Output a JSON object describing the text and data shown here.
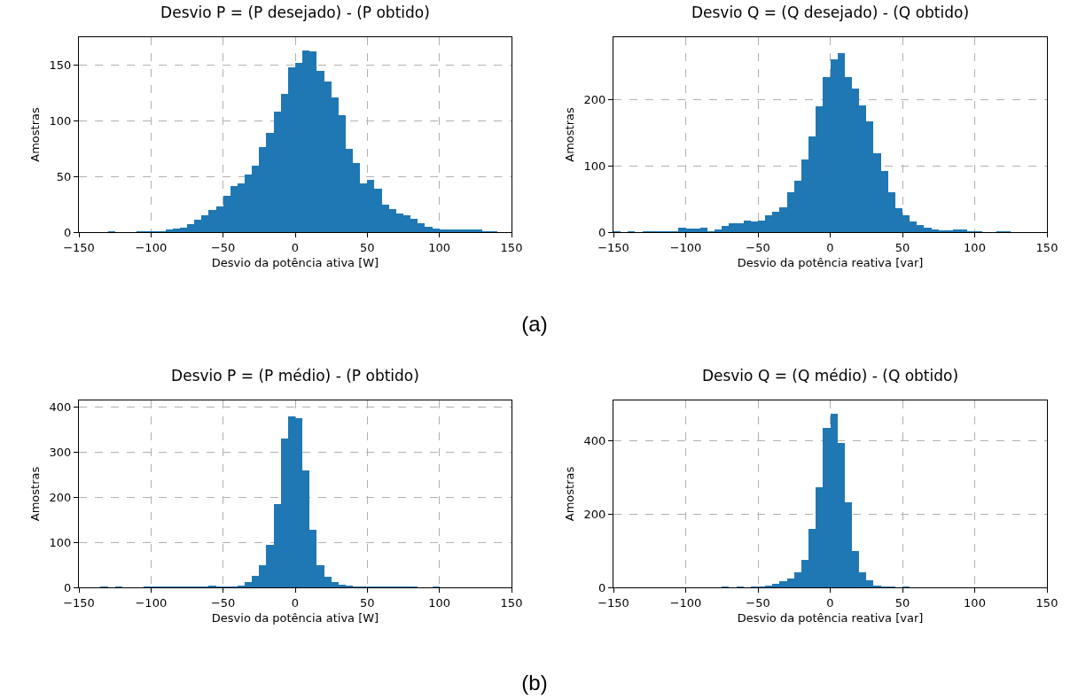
{
  "chart_data": [
    {
      "type": "histogram",
      "title": "Desvio P = (P desejado) - (P obtido)",
      "xlabel": "Desvio da potência ativa [W]",
      "ylabel": "Amostras",
      "color": "#1f77b4",
      "grid": true,
      "annotations": [
        "(a)"
      ],
      "bins": [
        -150,
        -145,
        -140,
        -135,
        -130,
        -125,
        -120,
        -115,
        -110,
        -105,
        -100,
        -95,
        -90,
        -85,
        -80,
        -75,
        -70,
        -65,
        -60,
        -55,
        -50,
        -45,
        -40,
        -35,
        -30,
        -25,
        -20,
        -15,
        -10,
        -5,
        0,
        5,
        10,
        15,
        20,
        25,
        30,
        35,
        40,
        45,
        50,
        55,
        60,
        65,
        70,
        75,
        80,
        85,
        90,
        95,
        100,
        105,
        110,
        115,
        120,
        125,
        130,
        135,
        140,
        145,
        150
      ],
      "values": [
        0,
        0,
        0,
        0,
        1,
        0,
        0,
        0,
        1,
        1,
        1,
        1,
        2,
        3,
        4,
        7,
        11,
        15,
        20,
        23,
        33,
        41,
        44,
        52,
        60,
        76,
        89,
        108,
        124,
        148,
        152,
        163,
        162,
        145,
        135,
        121,
        105,
        75,
        62,
        44,
        47,
        39,
        25,
        21,
        17,
        15,
        12,
        8,
        5,
        3,
        2,
        2,
        2,
        2,
        2,
        2,
        1,
        1,
        0,
        0
      ],
      "xlim": [
        -150,
        150
      ],
      "xticks": [
        {
          "value": -150,
          "label": "−150"
        },
        {
          "value": -100,
          "label": "−100"
        },
        {
          "value": -50,
          "label": "−50"
        },
        0,
        50,
        100,
        150
      ],
      "ylim": [
        0,
        175
      ],
      "yticks": [
        0,
        50,
        100,
        150
      ]
    },
    {
      "type": "histogram",
      "title": "Desvio Q = (Q desejado) - (Q obtido)",
      "xlabel": "Desvio da potência reativa [var]",
      "ylabel": "Amostras",
      "color": "#1f77b4",
      "grid": true,
      "bins": [
        -150,
        -145,
        -140,
        -135,
        -130,
        -125,
        -120,
        -115,
        -110,
        -105,
        -100,
        -95,
        -90,
        -85,
        -80,
        -75,
        -70,
        -65,
        -60,
        -55,
        -50,
        -45,
        -40,
        -35,
        -30,
        -25,
        -20,
        -15,
        -10,
        -5,
        0,
        5,
        10,
        15,
        20,
        25,
        30,
        35,
        40,
        45,
        50,
        55,
        60,
        65,
        70,
        75,
        80,
        85,
        90,
        95,
        100,
        105,
        110,
        115,
        120,
        125,
        130,
        135,
        140,
        145,
        150
      ],
      "values": [
        1,
        0,
        1,
        0,
        1,
        1,
        1,
        1,
        2,
        7,
        5,
        5,
        7,
        2,
        4,
        9,
        13,
        13,
        17,
        16,
        18,
        25,
        31,
        38,
        60,
        78,
        110,
        145,
        190,
        235,
        262,
        271,
        235,
        217,
        192,
        168,
        119,
        92,
        60,
        36,
        25,
        16,
        11,
        7,
        4,
        3,
        3,
        4,
        4,
        2,
        2,
        0,
        0,
        1,
        1,
        0,
        0,
        0,
        0,
        0
      ],
      "xlim": [
        -150,
        150
      ],
      "xticks": [
        {
          "value": -150,
          "label": "−150"
        },
        {
          "value": -100,
          "label": "−100"
        },
        {
          "value": -50,
          "label": "−50"
        },
        0,
        50,
        100,
        150
      ],
      "ylim": [
        0,
        295
      ],
      "yticks": [
        0,
        100,
        200
      ]
    },
    {
      "type": "histogram",
      "title": "Desvio P = (P médio) - (P obtido)",
      "xlabel": "Desvio da potência ativa [W]",
      "ylabel": "Amostras",
      "color": "#1f77b4",
      "grid": true,
      "annotations": [
        "(b)"
      ],
      "bins": [
        -150,
        -145,
        -140,
        -135,
        -130,
        -125,
        -120,
        -115,
        -110,
        -105,
        -100,
        -95,
        -90,
        -85,
        -80,
        -75,
        -70,
        -65,
        -60,
        -55,
        -50,
        -45,
        -40,
        -35,
        -30,
        -25,
        -20,
        -15,
        -10,
        -5,
        0,
        5,
        10,
        15,
        20,
        25,
        30,
        35,
        40,
        45,
        50,
        55,
        60,
        65,
        70,
        75,
        80,
        85,
        90,
        95,
        100,
        105,
        110,
        115,
        120,
        125,
        130,
        135,
        140,
        145,
        150
      ],
      "values": [
        0,
        0,
        0,
        1,
        0,
        1,
        0,
        0,
        0,
        1,
        1,
        2,
        2,
        1,
        1,
        1,
        1,
        2,
        3,
        2,
        2,
        2,
        3,
        12,
        26,
        50,
        95,
        185,
        330,
        380,
        375,
        260,
        127,
        50,
        23,
        12,
        5,
        3,
        2,
        2,
        2,
        2,
        2,
        1,
        1,
        1,
        1,
        0,
        0,
        1,
        0,
        0,
        0,
        0,
        0,
        0,
        0,
        0,
        0,
        0
      ],
      "xlim": [
        -150,
        150
      ],
      "xticks": [
        {
          "value": -150,
          "label": "−150"
        },
        {
          "value": -100,
          "label": "−100"
        },
        {
          "value": -50,
          "label": "−50"
        },
        0,
        50,
        100,
        150
      ],
      "ylim": [
        0,
        415
      ],
      "yticks": [
        0,
        100,
        200,
        300,
        400
      ]
    },
    {
      "type": "histogram",
      "title": "Desvio Q = (Q médio) - (Q obtido)",
      "xlabel": "Desvio da potência reativa [var]",
      "ylabel": "Amostras",
      "color": "#1f77b4",
      "grid": true,
      "bins": [
        -150,
        -145,
        -140,
        -135,
        -130,
        -125,
        -120,
        -115,
        -110,
        -105,
        -100,
        -95,
        -90,
        -85,
        -80,
        -75,
        -70,
        -65,
        -60,
        -55,
        -50,
        -45,
        -40,
        -35,
        -30,
        -25,
        -20,
        -15,
        -10,
        -5,
        0,
        5,
        10,
        15,
        20,
        25,
        30,
        35,
        40,
        45,
        50,
        55,
        60,
        65,
        70,
        75,
        80,
        85,
        90,
        95,
        100,
        105,
        110,
        115,
        120,
        125,
        130,
        135,
        140,
        145,
        150
      ],
      "values": [
        0,
        0,
        0,
        0,
        0,
        0,
        0,
        0,
        0,
        0,
        0,
        0,
        0,
        0,
        0,
        2,
        0,
        2,
        0,
        2,
        3,
        6,
        10,
        16,
        24,
        40,
        76,
        160,
        273,
        434,
        474,
        394,
        233,
        100,
        40,
        20,
        6,
        3,
        3,
        0,
        2,
        0,
        0,
        0,
        0,
        0,
        0,
        0,
        0,
        0,
        0,
        0,
        0,
        0,
        0,
        0,
        0,
        0,
        0,
        0
      ],
      "xlim": [
        -150,
        150
      ],
      "xticks": [
        {
          "value": -150,
          "label": "−150"
        },
        {
          "value": -100,
          "label": "−100"
        },
        {
          "value": -50,
          "label": "−50"
        },
        0,
        50,
        100,
        150
      ],
      "ylim": [
        0,
        510
      ],
      "yticks": [
        0,
        200,
        400
      ]
    }
  ]
}
